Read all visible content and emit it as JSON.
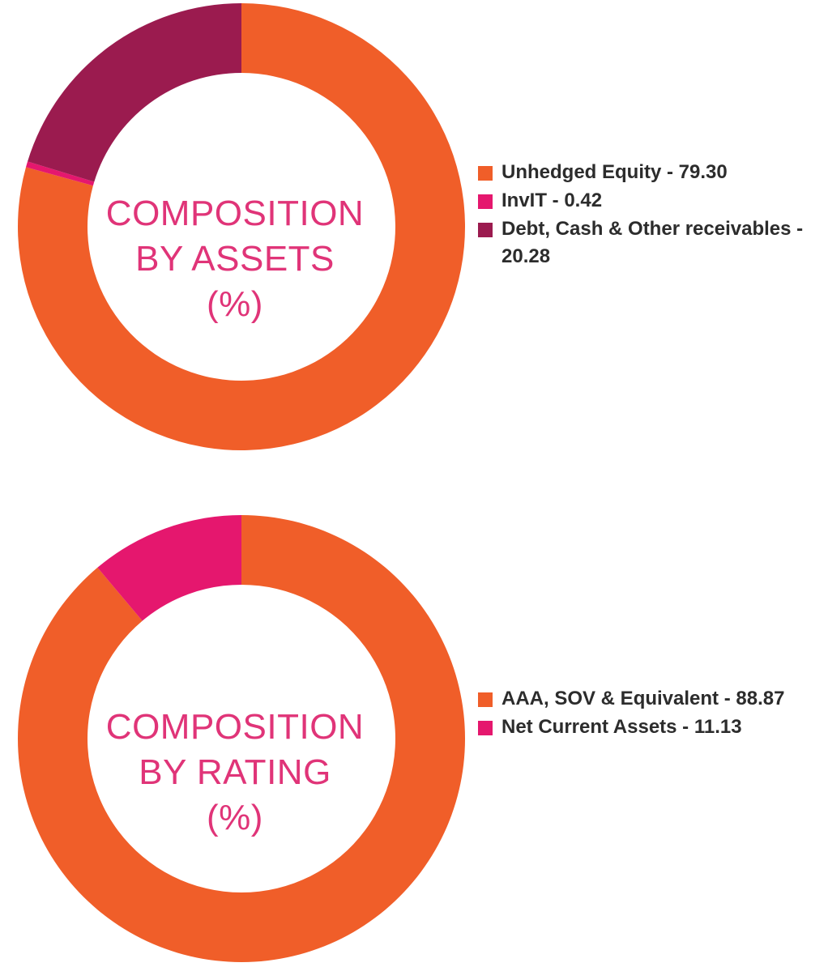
{
  "chart_data": [
    {
      "type": "pie",
      "variant": "donut",
      "center_label": [
        "COMPOSITION",
        "BY ASSETS",
        "(%)"
      ],
      "categories": [
        "Unhedged Equity",
        "InvIT",
        "Debt, Cash & Other receivables"
      ],
      "values": [
        79.3,
        0.42,
        20.28
      ],
      "colors": [
        "#f05e29",
        "#e5176e",
        "#9b1b4f"
      ],
      "legend": {
        "placement": "right",
        "items": [
          "Unhedged Equity - 79.30",
          "InvIT - 0.42",
          "Debt, Cash & Other receivables - 20.28"
        ]
      }
    },
    {
      "type": "pie",
      "variant": "donut",
      "center_label": [
        "COMPOSITION",
        "BY RATING",
        "(%)"
      ],
      "categories": [
        "AAA, SOV & Equivalent",
        "Net Current Assets"
      ],
      "values": [
        88.87,
        11.13
      ],
      "colors": [
        "#f05e29",
        "#e5176e"
      ],
      "legend": {
        "placement": "right",
        "items": [
          "AAA, SOV & Equivalent - 88.87",
          "Net Current Assets - 11.13"
        ]
      }
    }
  ]
}
